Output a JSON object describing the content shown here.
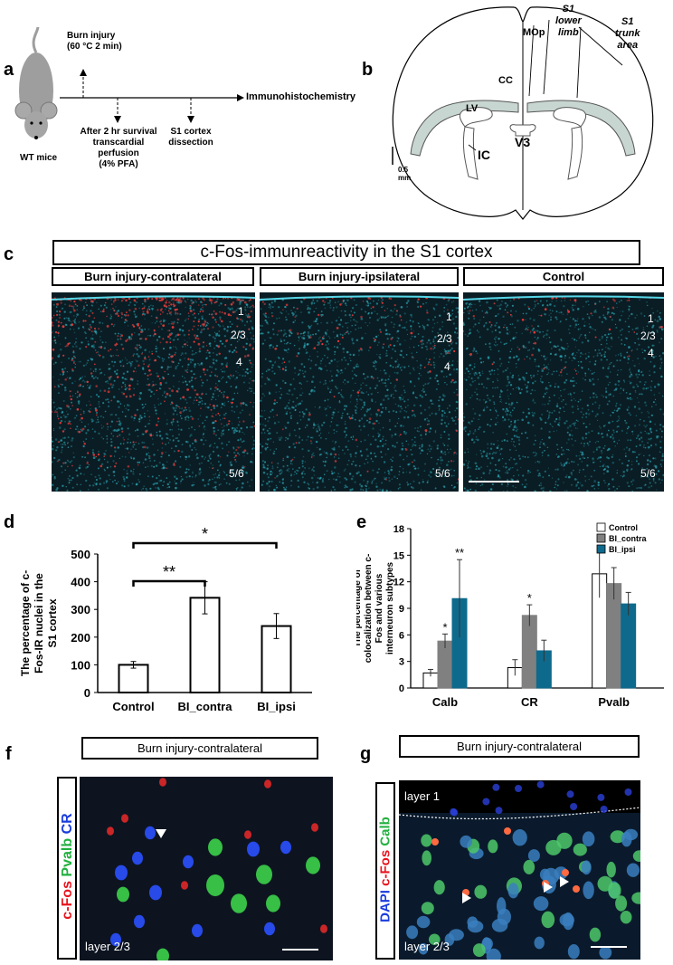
{
  "panel_a": {
    "label": "a",
    "burn": [
      "Burn injury",
      "(60 °C 2 min)"
    ],
    "survival": [
      "After 2 hr survival",
      "transcardial",
      "perfusion",
      "(4% PFA)"
    ],
    "dissection": [
      "S1 cortex",
      "dissection"
    ],
    "immuno": "Immunohistochemistry",
    "mice": "WT mice"
  },
  "panel_b": {
    "label": "b",
    "mop": "MOp",
    "s1_lower": [
      "S1",
      "lower",
      "limb"
    ],
    "s1_trunk": [
      "S1",
      "trunk",
      "area"
    ],
    "cc": "CC",
    "lv": "LV",
    "v3": "V3",
    "ic": "IC",
    "scale": [
      "0.5",
      "mm"
    ]
  },
  "panel_c": {
    "label": "c",
    "title": "c-Fos-immunreactivity in the S1 cortex",
    "columns": [
      {
        "name": "Burn injury-contralateral",
        "bold": true
      },
      {
        "name": "Burn injury-ipsilateral",
        "bold": true
      },
      {
        "name": "Control",
        "bold": true
      }
    ],
    "layers": [
      "1",
      "2/3",
      "4",
      "5/6"
    ]
  },
  "panel_d": {
    "label": "d",
    "chart_data": {
      "type": "bar",
      "ylabel": "The percentage of c-Fos-IR nuclei in the S1 cortex",
      "categories": [
        "Control",
        "BI_contra",
        "BI_ipsi"
      ],
      "values": [
        100,
        342,
        240
      ],
      "errors": [
        12,
        58,
        45
      ],
      "ylim": [
        0,
        500
      ],
      "yticks": [
        "0",
        "100",
        "200",
        "300",
        "400",
        "500"
      ],
      "significance": [
        {
          "from": "Control",
          "to": "BI_contra",
          "label": "**"
        },
        {
          "from": "Control",
          "to": "BI_ipsi",
          "label": "*"
        }
      ]
    }
  },
  "panel_e": {
    "label": "e",
    "chart_data": {
      "type": "bar",
      "ylabel": "The percentage of colocalization between c-Fos and various interneuron subtypes",
      "categories": [
        "Calb",
        "CR",
        "Pvalb"
      ],
      "series": [
        {
          "name": "Control",
          "values": [
            1.7,
            2.3,
            12.9
          ],
          "errors": [
            0.4,
            0.9,
            2.7
          ],
          "color": "#ffffff"
        },
        {
          "name": "BI_contra",
          "values": [
            5.3,
            8.2,
            11.8
          ],
          "errors": [
            0.8,
            1.2,
            1.8
          ],
          "color": "#808080"
        },
        {
          "name": "BI_ipsi",
          "values": [
            10.1,
            4.2,
            9.5
          ],
          "errors": [
            4.4,
            1.2,
            1.3
          ],
          "color": "#0e6a8c"
        }
      ],
      "ylim": [
        0,
        18
      ],
      "yticks": [
        "0",
        "3",
        "6",
        "9",
        "12",
        "15",
        "18"
      ],
      "annotations": [
        {
          "category": "Calb",
          "series": "BI_contra",
          "label": "*"
        },
        {
          "category": "Calb",
          "series": "BI_ipsi",
          "label": "**"
        },
        {
          "category": "CR",
          "series": "BI_contra",
          "label": "*"
        }
      ]
    }
  },
  "panel_f": {
    "label": "f",
    "title": "Burn injury-contralateral",
    "side": [
      {
        "text": "c-Fos",
        "color": "#e8141e"
      },
      {
        "text": " Pvalb",
        "color": "#22b040"
      },
      {
        "text": " CR",
        "color": "#1a3cdc"
      }
    ],
    "layer": "layer 2/3"
  },
  "panel_g": {
    "label": "g",
    "title": "Burn injury-contralateral",
    "side": [
      {
        "text": "DAPI",
        "color": "#1a3cdc"
      },
      {
        "text": " c-Fos",
        "color": "#e8141e"
      },
      {
        "text": " Calb",
        "color": "#22b040"
      }
    ],
    "layer1": "layer 1",
    "layer23": "layer 2/3"
  },
  "colors": {
    "dapi_cyan": "#2fb6c6",
    "fos_red": "#e23a3a",
    "bar_blue": "#0e6a8c"
  }
}
